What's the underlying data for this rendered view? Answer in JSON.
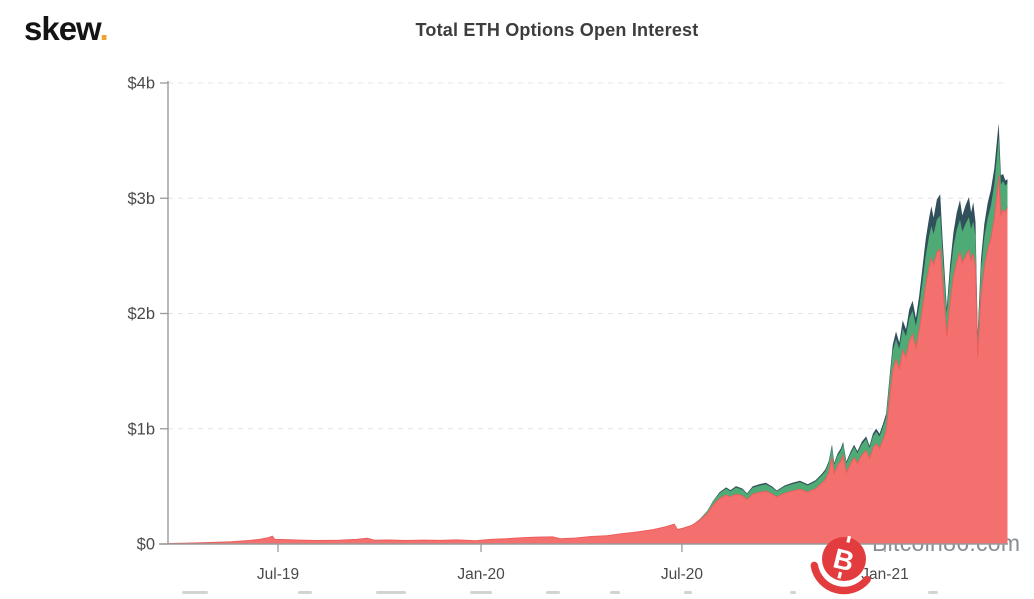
{
  "header": {
    "logo_text": "skew",
    "logo_dot": ".",
    "title": "Total ETH Options Open Interest"
  },
  "watermark": {
    "text": "Bitcoin86.com",
    "symbol": "B",
    "color": "#e23c3e"
  },
  "colors": {
    "accent_orange": "#f0a22e",
    "axis": "#9a9a9a",
    "grid": "#e4e4e4",
    "tick_label": "#4f4f4f",
    "title": "#3d3d3d",
    "watermark_gray": "#878d93",
    "series_red": "#f4706e",
    "series_red_edge": "#ec5e5c",
    "series_green": "#4fab76",
    "series_dark": "#31505c"
  },
  "chart_data": {
    "type": "area",
    "stacked": true,
    "title": "Total ETH Options Open Interest",
    "grid": {
      "horizontal_dashed": true
    },
    "legend": "cut off at bottom edge of image",
    "y_axis": {
      "unit": "USD billions",
      "max": 4,
      "ticks": [
        {
          "label": "$0",
          "value": 0
        },
        {
          "label": "$1b",
          "value": 1
        },
        {
          "label": "$2b",
          "value": 2
        },
        {
          "label": "$3b",
          "value": 3
        },
        {
          "label": "$4b",
          "value": 4
        }
      ]
    },
    "x_axis": {
      "range": [
        "2019-03-23",
        "2021-04-22"
      ],
      "ticks": [
        {
          "label": "Jul-19",
          "date": "2019-07-01"
        },
        {
          "label": "Jan-20",
          "date": "2020-01-01"
        },
        {
          "label": "Jul-20",
          "date": "2020-07-01"
        },
        {
          "label": "Jan-21",
          "date": "2021-01-01"
        }
      ]
    },
    "series": [
      {
        "name": "bottom-red",
        "color": "#f4706e"
      },
      {
        "name": "middle-green",
        "color": "#4fab76"
      },
      {
        "name": "top-dark-teal",
        "color": "#31505c"
      }
    ],
    "points_format": [
      "date",
      "bottom-red",
      "middle-green",
      "top-dark-teal"
    ],
    "points": [
      [
        "2019-03-23",
        0.004,
        0,
        0
      ],
      [
        "2019-04-10",
        0.008,
        0,
        0
      ],
      [
        "2019-05-01",
        0.013,
        0,
        0
      ],
      [
        "2019-05-20",
        0.02,
        0,
        0
      ],
      [
        "2019-06-05",
        0.03,
        0,
        0
      ],
      [
        "2019-06-15",
        0.042,
        0,
        0
      ],
      [
        "2019-06-22",
        0.055,
        0,
        0
      ],
      [
        "2019-06-26",
        0.068,
        0,
        0
      ],
      [
        "2019-06-28",
        0.04,
        0,
        0
      ],
      [
        "2019-07-08",
        0.038,
        0,
        0
      ],
      [
        "2019-07-20",
        0.034,
        0,
        0
      ],
      [
        "2019-08-05",
        0.03,
        0,
        0
      ],
      [
        "2019-08-25",
        0.032,
        0,
        0
      ],
      [
        "2019-09-10",
        0.04,
        0,
        0
      ],
      [
        "2019-09-20",
        0.05,
        0,
        0
      ],
      [
        "2019-09-27",
        0.032,
        0,
        0
      ],
      [
        "2019-10-10",
        0.035,
        0,
        0
      ],
      [
        "2019-10-25",
        0.03,
        0,
        0
      ],
      [
        "2019-11-10",
        0.034,
        0,
        0
      ],
      [
        "2019-11-25",
        0.031,
        0,
        0
      ],
      [
        "2019-12-10",
        0.036,
        0,
        0
      ],
      [
        "2019-12-27",
        0.028,
        0,
        0
      ],
      [
        "2020-01-10",
        0.04,
        0,
        0
      ],
      [
        "2020-01-24",
        0.046,
        0,
        0
      ],
      [
        "2020-02-07",
        0.055,
        0,
        0
      ],
      [
        "2020-02-21",
        0.06,
        0,
        0
      ],
      [
        "2020-03-06",
        0.062,
        0,
        0
      ],
      [
        "2020-03-13",
        0.045,
        0,
        0
      ],
      [
        "2020-03-27",
        0.052,
        0,
        0
      ],
      [
        "2020-04-10",
        0.065,
        0,
        0
      ],
      [
        "2020-04-24",
        0.072,
        0,
        0
      ],
      [
        "2020-05-08",
        0.09,
        0,
        0
      ],
      [
        "2020-05-22",
        0.105,
        0,
        0
      ],
      [
        "2020-06-05",
        0.125,
        0,
        0
      ],
      [
        "2020-06-16",
        0.148,
        0,
        0
      ],
      [
        "2020-06-24",
        0.172,
        0,
        0
      ],
      [
        "2020-06-27",
        0.125,
        0,
        0
      ],
      [
        "2020-07-03",
        0.14,
        0,
        0
      ],
      [
        "2020-07-10",
        0.162,
        0,
        0
      ],
      [
        "2020-07-17",
        0.205,
        0.01,
        0
      ],
      [
        "2020-07-24",
        0.265,
        0.022,
        0
      ],
      [
        "2020-07-29",
        0.335,
        0.032,
        0.004
      ],
      [
        "2020-08-04",
        0.395,
        0.046,
        0.008
      ],
      [
        "2020-08-10",
        0.425,
        0.056,
        0.01
      ],
      [
        "2020-08-14",
        0.408,
        0.05,
        0.01
      ],
      [
        "2020-08-19",
        0.432,
        0.058,
        0.012
      ],
      [
        "2020-08-25",
        0.418,
        0.053,
        0.01
      ],
      [
        "2020-08-29",
        0.385,
        0.046,
        0.008
      ],
      [
        "2020-09-03",
        0.432,
        0.056,
        0.012
      ],
      [
        "2020-09-09",
        0.448,
        0.058,
        0.012
      ],
      [
        "2020-09-15",
        0.458,
        0.06,
        0.014
      ],
      [
        "2020-09-21",
        0.432,
        0.056,
        0.01
      ],
      [
        "2020-09-25",
        0.408,
        0.048,
        0.008
      ],
      [
        "2020-10-02",
        0.44,
        0.058,
        0.01
      ],
      [
        "2020-10-09",
        0.46,
        0.06,
        0.012
      ],
      [
        "2020-10-16",
        0.475,
        0.062,
        0.012
      ],
      [
        "2020-10-23",
        0.45,
        0.058,
        0.01
      ],
      [
        "2020-10-30",
        0.48,
        0.062,
        0.012
      ],
      [
        "2020-11-05",
        0.53,
        0.068,
        0.014
      ],
      [
        "2020-11-08",
        0.56,
        0.072,
        0.016
      ],
      [
        "2020-11-11",
        0.62,
        0.08,
        0.018
      ],
      [
        "2020-11-14",
        0.75,
        0.092,
        0.022
      ],
      [
        "2020-11-16",
        0.61,
        0.078,
        0.016
      ],
      [
        "2020-11-19",
        0.68,
        0.085,
        0.018
      ],
      [
        "2020-11-22",
        0.72,
        0.09,
        0.02
      ],
      [
        "2020-11-24",
        0.77,
        0.095,
        0.022
      ],
      [
        "2020-11-27",
        0.62,
        0.08,
        0.016
      ],
      [
        "2020-12-01",
        0.7,
        0.088,
        0.018
      ],
      [
        "2020-12-04",
        0.75,
        0.092,
        0.02
      ],
      [
        "2020-12-07",
        0.7,
        0.088,
        0.018
      ],
      [
        "2020-12-11",
        0.77,
        0.095,
        0.022
      ],
      [
        "2020-12-15",
        0.81,
        0.1,
        0.024
      ],
      [
        "2020-12-18",
        0.74,
        0.092,
        0.02
      ],
      [
        "2020-12-21",
        0.83,
        0.102,
        0.024
      ],
      [
        "2020-12-24",
        0.87,
        0.106,
        0.026
      ],
      [
        "2020-12-27",
        0.83,
        0.102,
        0.024
      ],
      [
        "2020-12-30",
        0.9,
        0.11,
        0.028
      ],
      [
        "2021-01-02",
        0.98,
        0.118,
        0.032
      ],
      [
        "2021-01-05",
        1.25,
        0.145,
        0.04
      ],
      [
        "2021-01-08",
        1.5,
        0.17,
        0.055
      ],
      [
        "2021-01-11",
        1.6,
        0.18,
        0.065
      ],
      [
        "2021-01-14",
        1.52,
        0.172,
        0.055
      ],
      [
        "2021-01-17",
        1.68,
        0.19,
        0.07
      ],
      [
        "2021-01-20",
        1.62,
        0.182,
        0.062
      ],
      [
        "2021-01-23",
        1.76,
        0.198,
        0.078
      ],
      [
        "2021-01-26",
        1.82,
        0.205,
        0.085
      ],
      [
        "2021-01-29",
        1.7,
        0.192,
        0.068
      ],
      [
        "2021-02-01",
        1.85,
        0.21,
        0.095
      ],
      [
        "2021-02-04",
        2.05,
        0.232,
        0.12
      ],
      [
        "2021-02-07",
        2.25,
        0.255,
        0.145
      ],
      [
        "2021-02-10",
        2.4,
        0.27,
        0.16
      ],
      [
        "2021-02-12",
        2.48,
        0.28,
        0.17
      ],
      [
        "2021-02-14",
        2.42,
        0.27,
        0.14
      ],
      [
        "2021-02-17",
        2.53,
        0.285,
        0.175
      ],
      [
        "2021-02-20",
        2.56,
        0.29,
        0.185
      ],
      [
        "2021-02-22",
        2.3,
        0.255,
        0.12
      ],
      [
        "2021-02-24",
        2.05,
        0.225,
        0.085
      ],
      [
        "2021-02-26",
        1.8,
        0.195,
        0.06
      ],
      [
        "2021-03-01",
        2.1,
        0.235,
        0.09
      ],
      [
        "2021-03-04",
        2.32,
        0.26,
        0.12
      ],
      [
        "2021-03-07",
        2.45,
        0.275,
        0.15
      ],
      [
        "2021-03-10",
        2.53,
        0.285,
        0.17
      ],
      [
        "2021-03-12",
        2.44,
        0.27,
        0.14
      ],
      [
        "2021-03-15",
        2.5,
        0.28,
        0.16
      ],
      [
        "2021-03-18",
        2.55,
        0.285,
        0.175
      ],
      [
        "2021-03-20",
        2.46,
        0.272,
        0.145
      ],
      [
        "2021-03-22",
        2.52,
        0.28,
        0.165
      ],
      [
        "2021-03-24",
        2.4,
        0.265,
        0.13
      ],
      [
        "2021-03-26",
        1.62,
        0.17,
        0.045
      ],
      [
        "2021-03-29",
        2.15,
        0.235,
        0.09
      ],
      [
        "2021-04-01",
        2.4,
        0.26,
        0.115
      ],
      [
        "2021-04-04",
        2.55,
        0.275,
        0.13
      ],
      [
        "2021-04-07",
        2.65,
        0.285,
        0.14
      ],
      [
        "2021-04-10",
        2.82,
        0.3,
        0.14
      ],
      [
        "2021-04-13",
        3.1,
        0.32,
        0.14
      ],
      [
        "2021-04-14",
        3.2,
        0.33,
        0.12
      ],
      [
        "2021-04-16",
        2.85,
        0.27,
        0.08
      ],
      [
        "2021-04-18",
        2.9,
        0.25,
        0.06
      ],
      [
        "2021-04-20",
        2.88,
        0.23,
        0.045
      ],
      [
        "2021-04-22",
        2.92,
        0.21,
        0.035
      ]
    ]
  }
}
